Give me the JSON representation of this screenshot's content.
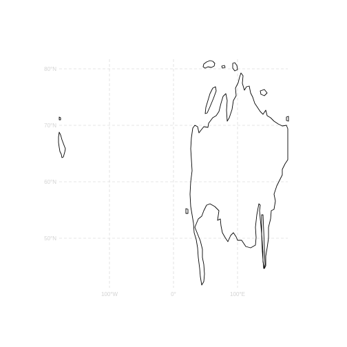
{
  "map": {
    "lat_labels": [
      "80°N",
      "70°N",
      "60°N",
      "50°N"
    ],
    "lon_labels": [
      "100°W",
      "0°",
      "100°E"
    ],
    "grid_color": "#dddddd",
    "label_color": "#d3d3d3",
    "coastline_color": "#000000"
  }
}
